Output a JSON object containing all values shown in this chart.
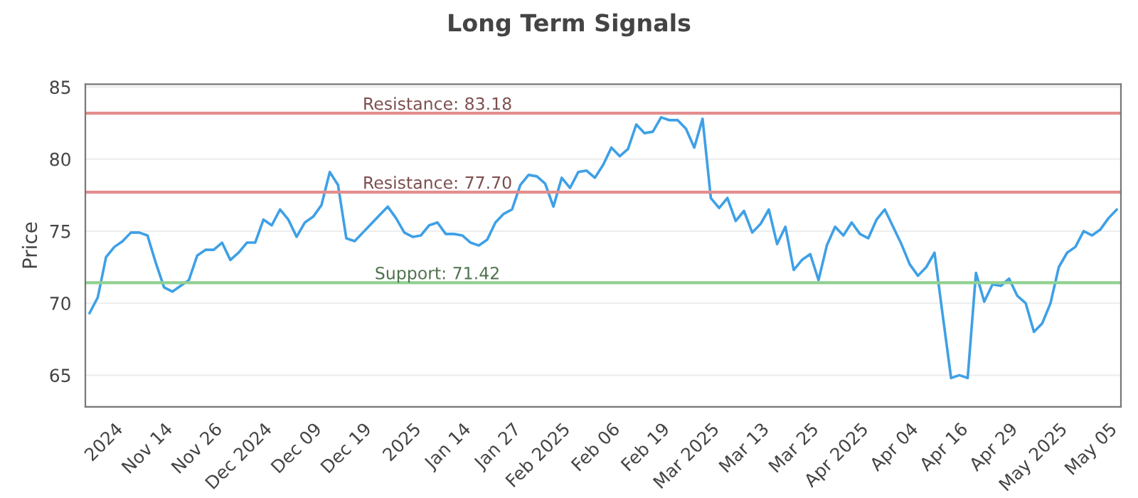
{
  "chart_data": {
    "type": "line",
    "title": "Long Term Signals",
    "ylabel": "Price",
    "categories": [
      null,
      null,
      null,
      "2024",
      null,
      null,
      null,
      null,
      null,
      "Nov 14",
      null,
      null,
      null,
      null,
      null,
      "Nov 26",
      null,
      null,
      null,
      null,
      null,
      "Dec 2024",
      null,
      null,
      null,
      null,
      null,
      "Dec 09",
      null,
      null,
      null,
      null,
      null,
      "Dec 19",
      null,
      null,
      null,
      null,
      null,
      "2025",
      null,
      null,
      null,
      null,
      null,
      "Jan 14",
      null,
      null,
      null,
      null,
      null,
      "Jan 27",
      null,
      null,
      null,
      null,
      null,
      "Feb 2025",
      null,
      null,
      null,
      null,
      null,
      "Feb 06",
      null,
      null,
      null,
      null,
      null,
      "Feb 19",
      null,
      null,
      null,
      null,
      null,
      "Mar 2025",
      null,
      null,
      null,
      null,
      null,
      "Mar 13",
      null,
      null,
      null,
      null,
      null,
      "Mar 25",
      null,
      null,
      null,
      null,
      null,
      "Apr 2025",
      null,
      null,
      null,
      null,
      null,
      "Apr 04",
      null,
      null,
      null,
      null,
      null,
      "Apr 16",
      null,
      null,
      null,
      null,
      null,
      "Apr 29",
      null,
      null,
      null,
      null,
      null,
      "May 2025",
      null,
      null,
      null,
      null,
      null,
      "May 05",
      null
    ],
    "series": [
      {
        "color": "#3ea0e6",
        "values": [
          69.3,
          70.4,
          73.2,
          73.9,
          74.3,
          74.9,
          74.9,
          74.7,
          72.8,
          71.1,
          70.8,
          71.2,
          71.6,
          73.3,
          73.7,
          73.7,
          74.2,
          73.0,
          73.5,
          74.2,
          74.2,
          75.8,
          75.4,
          76.5,
          75.8,
          74.6,
          75.6,
          76.0,
          76.8,
          79.1,
          78.2,
          74.5,
          74.3,
          74.9,
          75.5,
          76.1,
          76.7,
          75.9,
          74.9,
          74.6,
          74.7,
          75.4,
          75.6,
          74.8,
          74.8,
          74.7,
          74.2,
          74.0,
          74.4,
          75.6,
          76.2,
          76.5,
          78.2,
          78.9,
          78.8,
          78.3,
          76.7,
          78.7,
          78.0,
          79.1,
          79.2,
          78.7,
          79.6,
          80.8,
          80.2,
          80.7,
          82.4,
          81.8,
          81.9,
          82.9,
          82.7,
          82.7,
          82.1,
          80.8,
          82.8,
          77.3,
          76.6,
          77.3,
          75.7,
          76.4,
          74.9,
          75.5,
          76.5,
          74.1,
          75.3,
          72.3,
          73.0,
          73.4,
          71.6,
          74.0,
          75.3,
          74.7,
          75.6,
          74.8,
          74.5,
          75.8,
          76.5,
          75.3,
          74.1,
          72.7,
          71.9,
          72.5,
          73.5,
          69.1,
          64.8,
          65.0,
          64.8,
          72.1,
          70.1,
          71.3,
          71.2,
          71.7,
          70.5,
          70.0,
          68.0,
          68.6,
          70.0,
          72.5,
          73.5,
          73.9,
          75.0,
          74.7,
          75.1,
          75.9,
          76.5
        ]
      }
    ],
    "ylim": [
      62.8,
      85.2
    ],
    "yticks": [
      65,
      70,
      75,
      80,
      85
    ],
    "grid": "y",
    "ref_lines": [
      {
        "axis": "y",
        "value": 83.18,
        "label": "Resistance: 83.18",
        "color": "#e38d8d"
      },
      {
        "axis": "y",
        "value": 77.7,
        "label": "Resistance: 77.70",
        "color": "#e38d8d"
      },
      {
        "axis": "y",
        "value": 71.42,
        "label": "Support: 71.42",
        "color": "#90d090"
      }
    ]
  }
}
